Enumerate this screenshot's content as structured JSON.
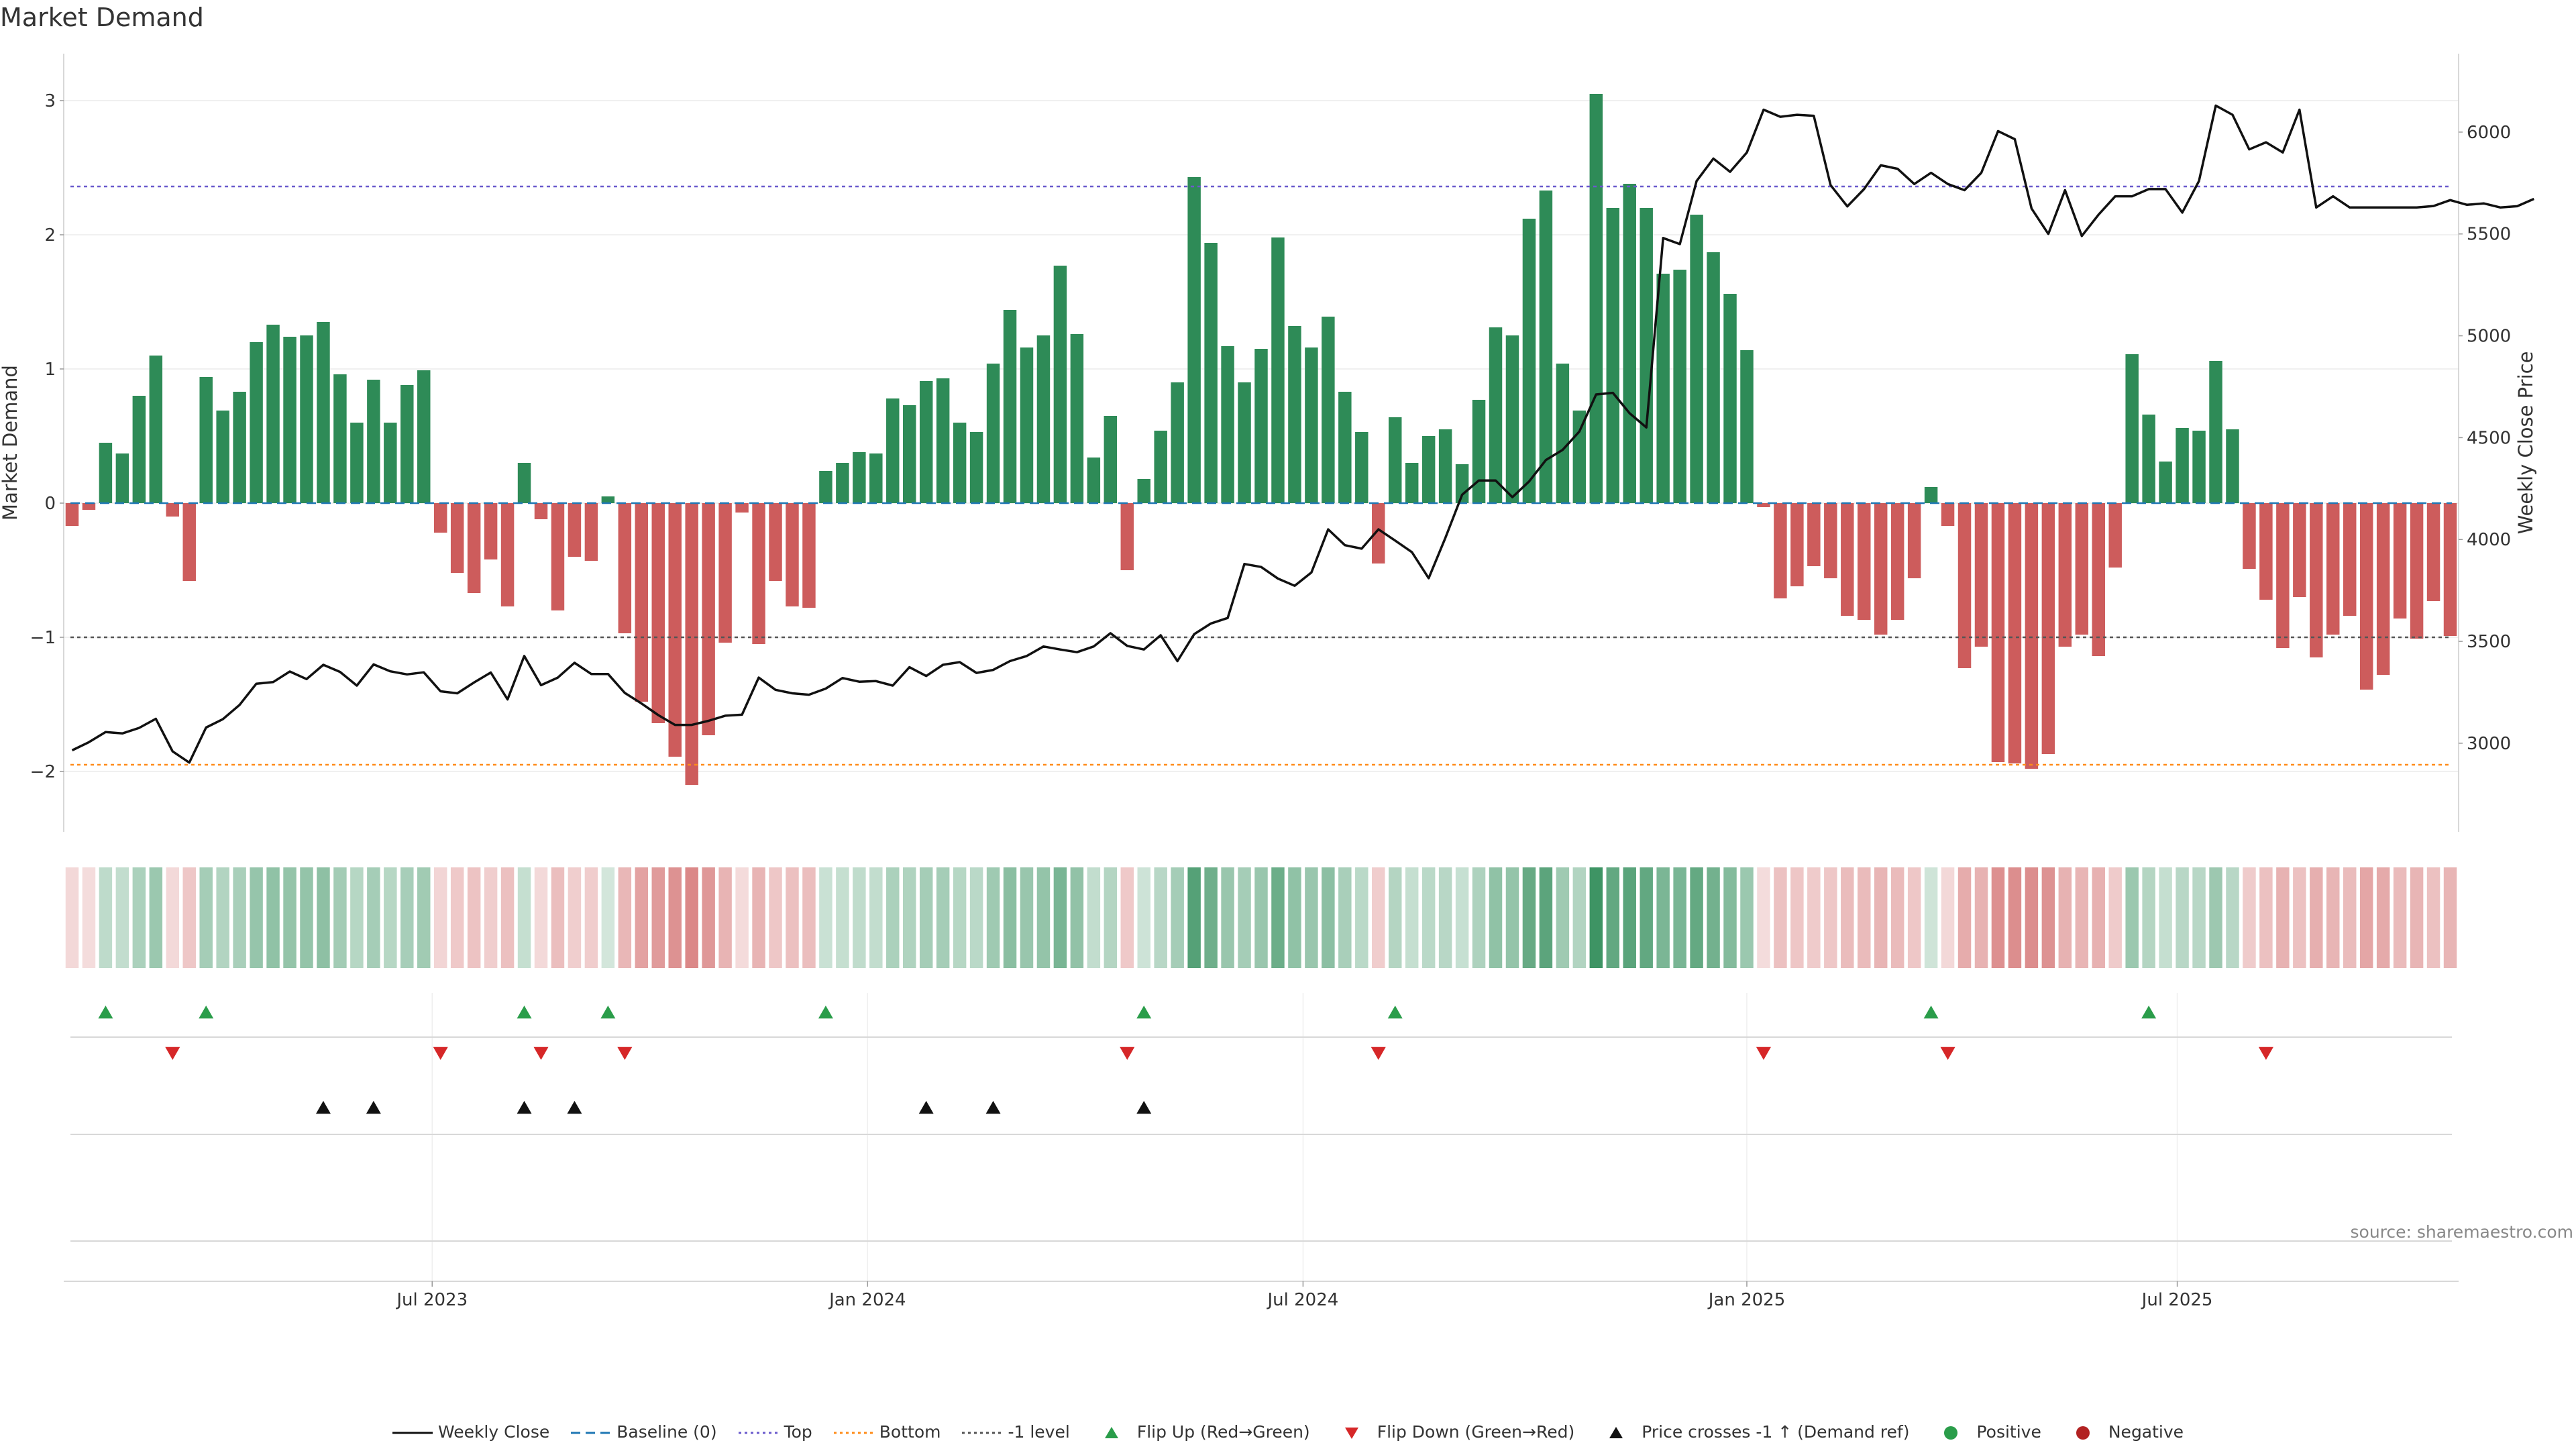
{
  "title": "Market Demand",
  "source": "source: sharemaestro.com",
  "chart_data": {
    "type": "bar",
    "subtype": "bar+line dual-axis with regime strip and event markers",
    "title": "Market Demand",
    "ylabel": "Market Demand",
    "y2label": "Weekly Close Price",
    "ylim": [
      -2.45,
      3.35
    ],
    "y2lim": [
      2565,
      6385
    ],
    "yticks": [
      -2,
      -1,
      0,
      1,
      2,
      3
    ],
    "yticklabels": [
      "−2",
      "−1",
      "0",
      "1",
      "2",
      "3"
    ],
    "y2ticks": [
      3000,
      3500,
      4000,
      4500,
      5000,
      5500,
      6000
    ],
    "xticks": [
      {
        "label": "Jul 2023",
        "pos": 22
      },
      {
        "label": "Jan 2024",
        "pos": 48
      },
      {
        "label": "Jul 2024",
        "pos": 74
      },
      {
        "label": "Jan 2025",
        "pos": 100.5
      },
      {
        "label": "Jul 2025",
        "pos": 126.2
      }
    ],
    "reference_lines": {
      "baseline": 0,
      "top": 2.36,
      "bottom": -1.95,
      "minus_one": -1
    },
    "demand": [
      -0.17,
      -0.05,
      0.45,
      0.37,
      0.8,
      1.1,
      -0.1,
      -0.58,
      0.94,
      0.69,
      0.83,
      1.2,
      1.33,
      1.24,
      1.25,
      1.35,
      0.96,
      0.6,
      0.92,
      0.6,
      0.88,
      0.99,
      -0.22,
      -0.52,
      -0.67,
      -0.42,
      -0.77,
      0.3,
      -0.12,
      -0.8,
      -0.4,
      -0.43,
      0.05,
      -0.97,
      -1.48,
      -1.64,
      -1.89,
      -2.1,
      -1.73,
      -1.04,
      -0.07,
      -1.05,
      -0.58,
      -0.77,
      -0.78,
      0.24,
      0.3,
      0.38,
      0.37,
      0.78,
      0.73,
      0.91,
      0.93,
      0.6,
      0.53,
      1.04,
      1.44,
      1.16,
      1.25,
      1.77,
      1.26,
      0.34,
      0.65,
      -0.5,
      0.18,
      0.54,
      0.9,
      2.43,
      1.94,
      1.17,
      0.9,
      1.15,
      1.98,
      1.32,
      1.16,
      1.39,
      0.83,
      0.53,
      -0.45,
      0.64,
      0.3,
      0.5,
      0.55,
      0.29,
      0.77,
      1.31,
      1.25,
      2.12,
      2.33,
      1.04,
      0.69,
      3.05,
      2.2,
      2.38,
      2.2,
      1.71,
      1.74,
      2.15,
      1.87,
      1.56,
      1.14,
      -0.03,
      -0.71,
      -0.62,
      -0.47,
      -0.56,
      -0.84,
      -0.87,
      -0.98,
      -0.87,
      -0.56,
      0.12,
      -0.17,
      -1.23,
      -1.07,
      -1.93,
      -1.94,
      -1.98,
      -1.87,
      -1.07,
      -0.98,
      -1.14,
      -0.48,
      1.11,
      0.66,
      0.31,
      0.56,
      0.54,
      1.06,
      0.55,
      -0.49,
      -0.72,
      -1.08,
      -0.7,
      -1.15,
      -0.98,
      -0.84,
      -1.39,
      -1.28,
      -0.86,
      -1.01,
      -0.73,
      -0.99
    ],
    "weekly_close": [
      2965,
      3005,
      3055,
      3048,
      3075,
      3120,
      2960,
      2905,
      3077,
      3118,
      3188,
      3292,
      3300,
      3352,
      3315,
      3385,
      3350,
      3283,
      3387,
      3353,
      3338,
      3348,
      3255,
      3245,
      3298,
      3347,
      3215,
      3428,
      3285,
      3322,
      3395,
      3340,
      3340,
      3247,
      3195,
      3138,
      3090,
      3090,
      3110,
      3135,
      3140,
      3322,
      3262,
      3245,
      3238,
      3268,
      3320,
      3302,
      3305,
      3283,
      3373,
      3330,
      3385,
      3398,
      3345,
      3360,
      3403,
      3428,
      3475,
      3460,
      3447,
      3475,
      3540,
      3478,
      3460,
      3530,
      3403,
      3535,
      3588,
      3615,
      3880,
      3865,
      3808,
      3773,
      3838,
      4050,
      3972,
      3955,
      4050,
      3995,
      3938,
      3810,
      4008,
      4220,
      4290,
      4290,
      4208,
      4285,
      4390,
      4440,
      4530,
      4712,
      4720,
      4620,
      4550,
      5480,
      5450,
      5760,
      5870,
      5805,
      5900,
      6110,
      6075,
      6085,
      6080,
      5740,
      5635,
      5720,
      5837,
      5820,
      5745,
      5800,
      5745,
      5715,
      5800,
      6005,
      5965,
      5625,
      5500,
      5715,
      5490,
      5595,
      5685,
      5685,
      5720,
      5720,
      5605,
      5760,
      6130,
      6085,
      5915,
      5950,
      5900,
      6110,
      5630,
      5685,
      5630,
      5630,
      5630,
      5630,
      5630,
      5637,
      5666,
      5643,
      5650,
      5630,
      5636,
      5672
    ],
    "flip_up_bars": [
      2,
      8,
      27,
      32,
      45,
      64,
      79,
      111,
      124
    ],
    "flip_down_bars": [
      6,
      22,
      28,
      33,
      63,
      78,
      101,
      112,
      131
    ],
    "price_crosses_bars": [
      15,
      18,
      27,
      30,
      51,
      55,
      64
    ],
    "legend": [
      {
        "label": "Weekly Close",
        "kind": "line",
        "color": "#111111"
      },
      {
        "label": "Baseline (0)",
        "kind": "dash",
        "color": "#1f77b4"
      },
      {
        "label": "Top",
        "kind": "dot",
        "color": "#6a5acd"
      },
      {
        "label": "Bottom",
        "kind": "dot",
        "color": "#ff8c1a"
      },
      {
        "label": "-1 level",
        "kind": "dot",
        "color": "#555555"
      },
      {
        "label": "Flip Up (Red→Green)",
        "kind": "tri-up",
        "color": "#2a9d4a"
      },
      {
        "label": "Flip Down (Green→Red)",
        "kind": "tri-down",
        "color": "#d62728"
      },
      {
        "label": "Price crosses -1 ↑ (Demand ref)",
        "kind": "tri-up",
        "color": "#111111"
      },
      {
        "label": "Positive",
        "kind": "dot-marker",
        "color": "#2a9d4a"
      },
      {
        "label": "Negative",
        "kind": "dot-marker",
        "color": "#b22222"
      }
    ]
  },
  "colors": {
    "positive_bar": "#2e8b57",
    "negative_bar": "#cd5c5c",
    "price_line": "#111111",
    "strip_positive": "#2e8b57",
    "strip_negative": "#cd5c5c"
  }
}
